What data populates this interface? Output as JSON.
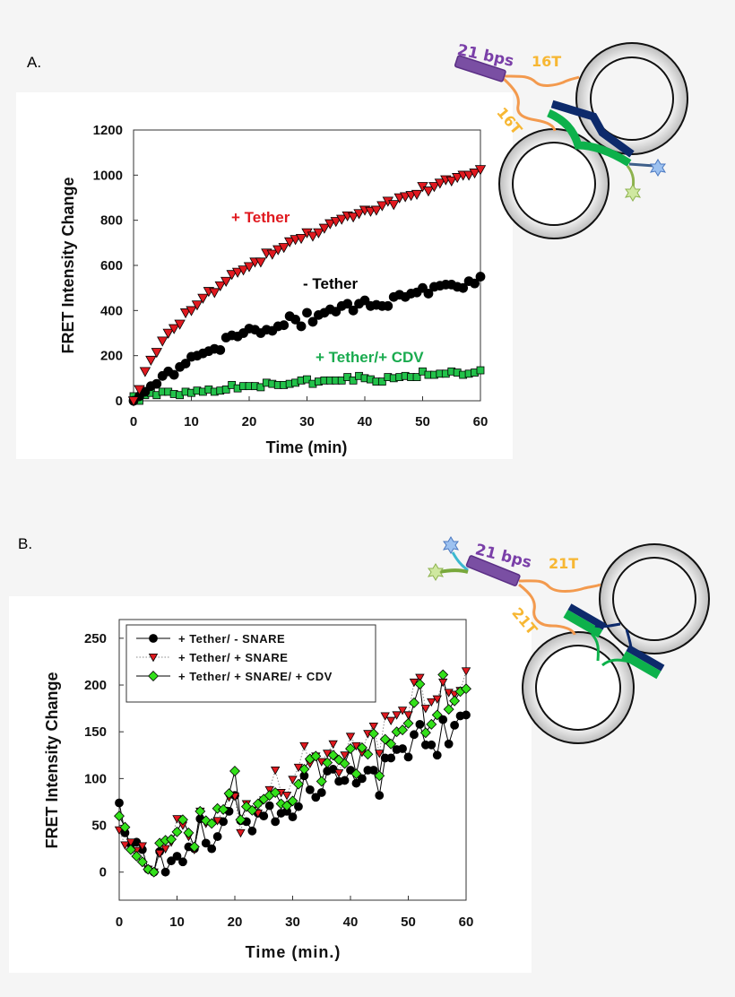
{
  "panels": {
    "a_label": "A.",
    "b_label": "B."
  },
  "diagram_a": {
    "duplex_label": "21 bps",
    "linker_top": "16T",
    "linker_side": "16T"
  },
  "diagram_b": {
    "duplex_label": "21 bps",
    "linker_top": "21T",
    "linker_side": "21T"
  },
  "colors": {
    "red": "#e0191f",
    "black": "#000000",
    "green_a": "#22c24a",
    "green_b": "#33e01a",
    "annotation_green": "#1aab4f",
    "purple": "#7a4fa3",
    "orange": "#f39a4e",
    "navy": "#0d2a6b",
    "snare_green": "#0db14b"
  },
  "chart_data": [
    {
      "type": "scatter",
      "xlabel": "Time (min)",
      "ylabel": "FRET Intensity Change",
      "xlim": [
        0,
        60
      ],
      "ylim": [
        0,
        1200
      ],
      "xticks": [
        "0",
        "10",
        "20",
        "30",
        "40",
        "50",
        "60"
      ],
      "yticks": [
        "0",
        "200",
        "400",
        "600",
        "800",
        "1000",
        "1200"
      ],
      "grid": false,
      "x": [
        0,
        1,
        2,
        3,
        4,
        5,
        6,
        7,
        8,
        9,
        10,
        11,
        12,
        13,
        14,
        15,
        16,
        17,
        18,
        19,
        20,
        21,
        22,
        23,
        24,
        25,
        26,
        27,
        28,
        29,
        30,
        31,
        32,
        33,
        34,
        35,
        36,
        37,
        38,
        39,
        40,
        41,
        42,
        43,
        44,
        45,
        46,
        47,
        48,
        49,
        50,
        51,
        52,
        53,
        54,
        55,
        56,
        57,
        58,
        59,
        60
      ],
      "series": [
        {
          "name": "+ Tether",
          "marker": "triangle-down",
          "color": "#e0191f",
          "values": [
            0,
            50,
            130,
            180,
            215,
            265,
            300,
            320,
            340,
            390,
            400,
            425,
            455,
            485,
            480,
            510,
            530,
            560,
            570,
            580,
            595,
            615,
            615,
            655,
            650,
            670,
            680,
            705,
            715,
            720,
            745,
            730,
            745,
            765,
            785,
            795,
            805,
            820,
            815,
            830,
            845,
            840,
            845,
            865,
            885,
            870,
            900,
            905,
            910,
            915,
            950,
            930,
            950,
            965,
            980,
            975,
            990,
            1000,
            1000,
            1010,
            1025
          ]
        },
        {
          "name": "- Tether",
          "marker": "circle",
          "color": "#000000",
          "values": [
            0,
            20,
            40,
            65,
            75,
            110,
            130,
            115,
            150,
            165,
            195,
            200,
            210,
            220,
            230,
            225,
            280,
            290,
            285,
            300,
            320,
            315,
            300,
            315,
            310,
            330,
            335,
            375,
            360,
            330,
            390,
            350,
            380,
            390,
            405,
            395,
            420,
            430,
            400,
            430,
            445,
            420,
            425,
            420,
            420,
            460,
            470,
            460,
            475,
            480,
            500,
            475,
            505,
            510,
            515,
            515,
            505,
            500,
            530,
            520,
            550
          ]
        },
        {
          "name": "+ Tether/+ CDV",
          "marker": "square",
          "color": "#22c24a",
          "values": [
            20,
            0,
            25,
            35,
            25,
            40,
            40,
            30,
            25,
            40,
            35,
            45,
            40,
            50,
            40,
            45,
            50,
            70,
            55,
            65,
            65,
            65,
            60,
            80,
            75,
            70,
            70,
            75,
            80,
            90,
            95,
            75,
            85,
            90,
            90,
            90,
            90,
            105,
            90,
            110,
            100,
            95,
            85,
            85,
            105,
            100,
            105,
            110,
            105,
            105,
            130,
            115,
            115,
            120,
            120,
            130,
            125,
            115,
            120,
            125,
            135
          ]
        }
      ]
    },
    {
      "type": "line",
      "xlabel": "Time (min.)",
      "ylabel": "FRET Intensity Change",
      "xlim": [
        0,
        60
      ],
      "ylim": [
        -30,
        270
      ],
      "xticks": [
        "0",
        "10",
        "20",
        "30",
        "40",
        "50",
        "60"
      ],
      "yticks": [
        "0",
        "50",
        "100",
        "150",
        "200",
        "250"
      ],
      "grid": false,
      "legend": "top-left",
      "x": [
        0,
        1,
        2,
        3,
        4,
        5,
        6,
        7,
        8,
        9,
        10,
        11,
        12,
        13,
        14,
        15,
        16,
        17,
        18,
        19,
        20,
        21,
        22,
        23,
        24,
        25,
        26,
        27,
        28,
        29,
        30,
        31,
        32,
        33,
        34,
        35,
        36,
        37,
        38,
        39,
        40,
        41,
        42,
        43,
        44,
        45,
        46,
        47,
        48,
        49,
        50,
        51,
        52,
        53,
        54,
        55,
        56,
        57,
        58,
        59,
        60
      ],
      "series": [
        {
          "name": "+ Tether/ - SNARE",
          "marker": "circle",
          "line": "solid",
          "color": "#000000",
          "values": [
            74,
            42,
            30,
            32,
            24,
            3,
            0,
            22,
            0,
            12,
            17,
            11,
            27,
            25,
            57,
            31,
            25,
            38,
            54,
            65,
            82,
            55,
            54,
            44,
            63,
            60,
            71,
            54,
            63,
            65,
            59,
            70,
            103,
            88,
            80,
            85,
            108,
            110,
            97,
            98,
            109,
            95,
            100,
            109,
            109,
            82,
            122,
            122,
            131,
            132,
            123,
            147,
            158,
            136,
            136,
            125,
            163,
            137,
            157,
            167,
            168
          ]
        },
        {
          "name": "+ Tether/ + SNARE",
          "marker": "triangle-down",
          "line": "dotted",
          "color": "#e0191f",
          "values": [
            45,
            29,
            32,
            23,
            28,
            3,
            0,
            20,
            25,
            32,
            57,
            50,
            38,
            24,
            65,
            52,
            52,
            55,
            66,
            80,
            81,
            42,
            73,
            66,
            63,
            77,
            88,
            109,
            85,
            82,
            99,
            112,
            135,
            116,
            124,
            118,
            127,
            137,
            106,
            125,
            145,
            135,
            128,
            148,
            156,
            127,
            167,
            162,
            168,
            173,
            168,
            203,
            208,
            175,
            182,
            185,
            203,
            192,
            190,
            194,
            215
          ]
        },
        {
          "name": "+ Tether/ + SNARE/ + CDV",
          "marker": "diamond",
          "line": "solid",
          "color": "#33e01a",
          "values": [
            60,
            48,
            24,
            17,
            11,
            3,
            0,
            31,
            34,
            35,
            43,
            56,
            42,
            27,
            65,
            55,
            52,
            68,
            67,
            84,
            108,
            56,
            70,
            66,
            73,
            78,
            82,
            85,
            73,
            71,
            76,
            94,
            110,
            121,
            124,
            97,
            117,
            125,
            120,
            116,
            132,
            105,
            133,
            126,
            148,
            103,
            142,
            137,
            150,
            152,
            159,
            181,
            201,
            149,
            158,
            168,
            211,
            174,
            183,
            193,
            196
          ]
        }
      ]
    }
  ],
  "annotations_a": [
    "+ Tether",
    "- Tether",
    "+ Tether/+ CDV"
  ]
}
